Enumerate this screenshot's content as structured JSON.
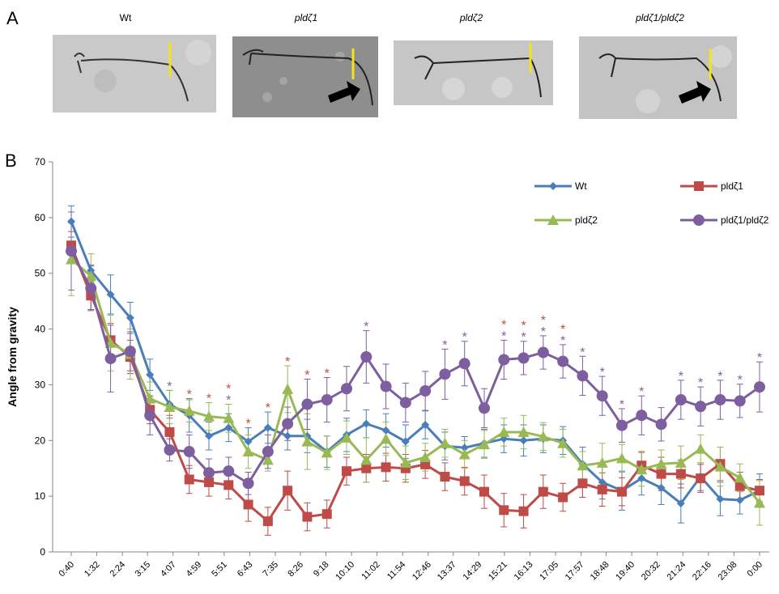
{
  "panels": [
    {
      "label": "A"
    },
    {
      "label": "B"
    }
  ],
  "photos": [
    {
      "title": "Wt"
    },
    {
      "title": "pldζ1"
    },
    {
      "title": "pldζ2"
    },
    {
      "title": "pldζ1/pldζ2"
    }
  ],
  "chart_data": {
    "type": "line",
    "ylabel": "Angle from gravity",
    "x": [
      40,
      80,
      120,
      160,
      200,
      240,
      280,
      320,
      360,
      400,
      440,
      480,
      520,
      560,
      600,
      640,
      680,
      720,
      760,
      800,
      840,
      880,
      920,
      960,
      1000,
      1040,
      1080,
      1120,
      1160,
      1200,
      1240,
      1280,
      1320,
      1360,
      1400,
      1440
    ],
    "xlim": [
      40,
      1440
    ],
    "xticks": [
      {
        "value": 40,
        "label": "0:40"
      },
      {
        "value": 92,
        "label": "1:32"
      },
      {
        "value": 144,
        "label": "2:24"
      },
      {
        "value": 195,
        "label": "3:15"
      },
      {
        "value": 247,
        "label": "4:07"
      },
      {
        "value": 299,
        "label": "4:59"
      },
      {
        "value": 351,
        "label": "5:51"
      },
      {
        "value": 403,
        "label": "6:43"
      },
      {
        "value": 455,
        "label": "7:35"
      },
      {
        "value": 506,
        "label": "8:26"
      },
      {
        "value": 558,
        "label": "9:18"
      },
      {
        "value": 610,
        "label": "10:10"
      },
      {
        "value": 662,
        "label": "11:02"
      },
      {
        "value": 714,
        "label": "11:54"
      },
      {
        "value": 766,
        "label": "12:46"
      },
      {
        "value": 817,
        "label": "13:37"
      },
      {
        "value": 869,
        "label": "14:29"
      },
      {
        "value": 921,
        "label": "15:21"
      },
      {
        "value": 973,
        "label": "16:13"
      },
      {
        "value": 1025,
        "label": "17:05"
      },
      {
        "value": 1077,
        "label": "17:57"
      },
      {
        "value": 1128,
        "label": "18:48"
      },
      {
        "value": 1180,
        "label": "19:40"
      },
      {
        "value": 1232,
        "label": "20:32"
      },
      {
        "value": 1284,
        "label": "21:24"
      },
      {
        "value": 1336,
        "label": "22:16"
      },
      {
        "value": 1388,
        "label": "23:08"
      },
      {
        "value": 1440,
        "label": "0:00"
      }
    ],
    "ylim": [
      0,
      70
    ],
    "yticks": [
      0,
      10,
      20,
      30,
      40,
      50,
      60,
      70
    ],
    "legend": "upper right",
    "series": [
      {
        "name": "Wt",
        "color": "#4a7ebb",
        "marker": "diamond",
        "values": [
          59.3,
          50.5,
          46.2,
          42,
          31.8,
          26.5,
          24.5,
          20.8,
          22.3,
          19.8,
          22.3,
          20.8,
          20.8,
          18,
          21,
          23,
          21.8,
          19.8,
          22.8,
          19,
          18.7,
          19.5,
          20.3,
          20,
          20.3,
          20,
          15.8,
          12.5,
          11,
          13.2,
          11.5,
          8.7,
          13.5,
          9.5,
          9.3,
          11
        ],
        "errors": [
          2.8,
          1,
          3.5,
          2.8,
          2.8,
          2.5,
          3,
          2.5,
          2.5,
          2.5,
          2.8,
          2.5,
          3,
          2.8,
          3,
          2.5,
          3,
          3,
          2.5,
          2.5,
          2,
          2.5,
          2.5,
          2.8,
          2.5,
          2.5,
          3,
          3,
          3.5,
          3,
          3,
          3.5,
          2.5,
          3,
          2.5,
          3
        ]
      },
      {
        "name": "pldζ1",
        "color": "#be4b48",
        "marker": "square",
        "values": [
          55,
          46,
          38,
          35,
          25.5,
          21.5,
          13,
          12.5,
          12,
          8.5,
          5.5,
          11,
          6.3,
          6.8,
          14.5,
          15,
          15.2,
          15,
          15.7,
          13.5,
          12.7,
          10.8,
          7.5,
          7.3,
          10.8,
          9.8,
          12.3,
          11.2,
          10.8,
          15.5,
          14,
          14,
          13.2,
          15.8,
          11.8,
          11
        ],
        "errors": [
          2.5,
          2.5,
          3,
          3,
          2.5,
          3,
          2.5,
          2.5,
          2.5,
          3,
          2.5,
          3.5,
          2.5,
          2.5,
          2.5,
          2.5,
          2.5,
          2.5,
          2.5,
          2.5,
          2.5,
          3,
          3,
          3,
          3,
          2.5,
          2.5,
          3,
          2.5,
          2.5,
          3,
          2.5,
          2.5,
          3,
          2.5,
          2
        ]
      },
      {
        "name": "pldζ2",
        "color": "#98b954",
        "marker": "triangle",
        "values": [
          52.5,
          49.5,
          37.5,
          35.5,
          27.5,
          26,
          25.3,
          24.3,
          24,
          18,
          16.5,
          29.2,
          19.8,
          17.8,
          20.5,
          16.5,
          20.3,
          16,
          17,
          19.5,
          17.5,
          19.3,
          21.5,
          21.5,
          20.7,
          19.5,
          15.5,
          16,
          16.8,
          14.8,
          15.8,
          16,
          18.5,
          15.3,
          13.3,
          8.8
        ],
        "errors": [
          6.5,
          4,
          5,
          4.5,
          3,
          3,
          2,
          2.5,
          2.5,
          3,
          2,
          4.2,
          5,
          3,
          3,
          4,
          3,
          3,
          2.5,
          2.5,
          2.5,
          2.5,
          2.5,
          3,
          2.5,
          2.5,
          2.5,
          3.5,
          2.5,
          3,
          2.5,
          3,
          2.5,
          3.5,
          2.5,
          4
        ]
      },
      {
        "name": "pldζ1/pldζ2",
        "color": "#7d5fa0",
        "marker": "circle",
        "values": [
          54,
          47.3,
          34.7,
          36,
          24.5,
          18.3,
          18,
          14.2,
          14.5,
          12.3,
          18,
          23,
          26.5,
          27.3,
          29.3,
          35,
          29.7,
          26.8,
          28.9,
          31.9,
          33.8,
          25.8,
          34.5,
          34.8,
          35.8,
          34.2,
          31.6,
          28,
          22.7,
          24.5,
          22.9,
          27.3,
          26.1,
          27.3,
          27.1,
          29.6
        ],
        "errors": [
          7,
          4,
          6,
          3.5,
          3.5,
          2,
          3,
          2.5,
          2.5,
          2,
          3,
          3,
          4.5,
          4,
          4,
          4.7,
          4,
          3.5,
          3.5,
          4.5,
          4,
          3.5,
          3.5,
          3,
          3,
          3,
          3.5,
          3.5,
          3,
          3.5,
          3,
          3.5,
          3.5,
          3.5,
          3,
          4.5
        ],
        "significance": [
          null,
          null,
          null,
          null,
          null,
          "*",
          null,
          null,
          "*",
          null,
          null,
          null,
          null,
          null,
          null,
          "*",
          null,
          null,
          null,
          "*",
          "*",
          null,
          "*",
          "*",
          "*",
          "*",
          "*",
          "*",
          "*",
          "*",
          null,
          "*",
          "*",
          "*",
          "*",
          "*"
        ]
      }
    ],
    "significance": [
      null,
      null,
      null,
      null,
      null,
      null,
      "*",
      "*",
      "*",
      "*",
      "*",
      "*",
      "*",
      "*",
      null,
      null,
      null,
      null,
      null,
      null,
      null,
      null,
      "*",
      "*",
      "*",
      "*",
      null,
      null,
      null,
      null,
      null,
      null,
      null,
      null,
      null,
      null
    ]
  }
}
